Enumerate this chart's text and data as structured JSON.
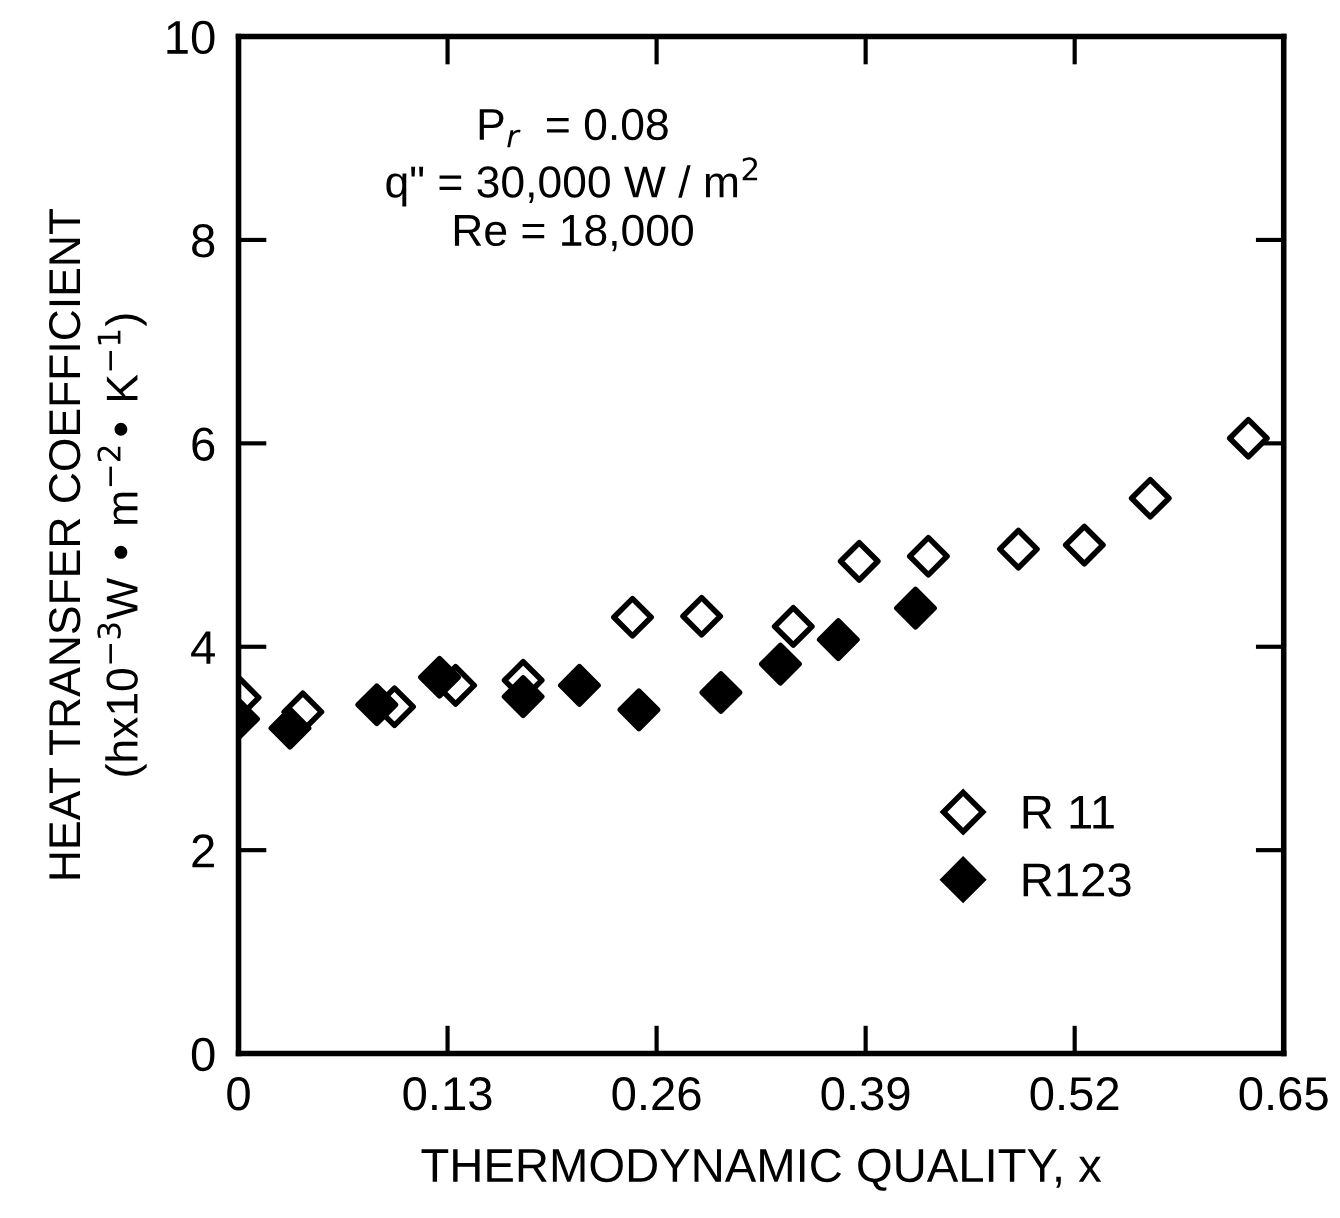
{
  "chart_data": {
    "type": "scatter",
    "xlabel": "THERMODYNAMIC QUALITY, x",
    "ylabel": "HEAT TRANSFER COEFFICIENT\n(hx10$^{−3}$W • m$^{−2}$• K$^{−1}$)",
    "annotations": [
      "P$_{r}$  = 0.08\nq\" = 30,000 W / m$^{2}$\nRe = 18,000"
    ],
    "xlim": [
      0,
      0.65
    ],
    "xticks": [
      0,
      0.13,
      0.26,
      0.39,
      0.52,
      0.65
    ],
    "ylim": [
      0,
      10
    ],
    "yticks": [
      0,
      2,
      4,
      6,
      8,
      10
    ],
    "marker": "diamond",
    "legend": "bottom right",
    "grid": false,
    "series": [
      {
        "name": "R 11",
        "color": "#000000",
        "x": [
          0.001,
          0.04,
          0.097,
          0.135,
          0.177,
          0.245,
          0.288,
          0.345,
          0.386,
          0.429,
          0.485,
          0.526,
          0.567,
          0.628
        ],
        "values": [
          3.5,
          3.36,
          3.41,
          3.62,
          3.67,
          4.29,
          4.3,
          4.2,
          4.84,
          4.89,
          4.96,
          5.0,
          5.46,
          6.05
        ]
      },
      {
        "name": "R123",
        "color": "#000000",
        "x": [
          0,
          0.032,
          0.086,
          0.125,
          0.177,
          0.212,
          0.249,
          0.3,
          0.337,
          0.373,
          0.421
        ],
        "values": [
          3.29,
          3.2,
          3.43,
          3.7,
          3.51,
          3.62,
          3.38,
          3.55,
          3.83,
          4.07,
          4.38
        ]
      }
    ]
  }
}
